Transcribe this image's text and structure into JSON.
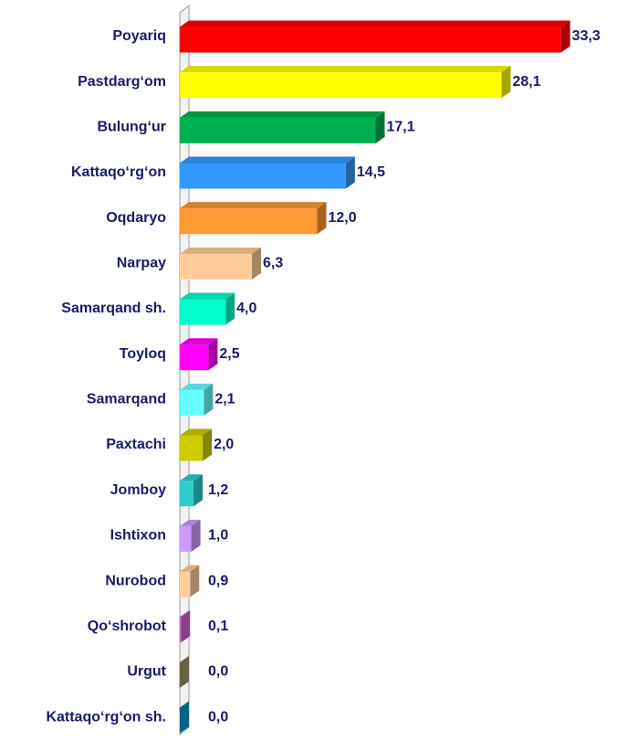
{
  "chart_data": {
    "type": "bar",
    "orientation": "horizontal",
    "categories": [
      "Poyariq",
      "Pastdarg‘om",
      "Bulung‘ur",
      "Kattaqo‘rg‘on",
      "Oqdaryo",
      "Narpay",
      "Samarqand sh.",
      "Toyloq",
      "Samarqand",
      "Paxtachi",
      "Jomboy",
      "Ishtixon",
      "Nurobod",
      "Qo‘shrobot",
      "Urgut",
      "Kattaqo‘rg‘on sh."
    ],
    "values": [
      33.3,
      28.1,
      17.1,
      14.5,
      12.0,
      6.3,
      4.0,
      2.5,
      2.1,
      2.0,
      1.2,
      1.0,
      0.9,
      0.1,
      0.0,
      0.0
    ],
    "value_labels": [
      "33,3",
      "28,1",
      "17,1",
      "14,5",
      "12,0",
      "6,3",
      "4,0",
      "2,5",
      "2,1",
      "2,0",
      "1,2",
      "1,0",
      "0,9",
      "0,1",
      "0,0",
      "0,0"
    ],
    "colors": [
      "#ff0000",
      "#ffff00",
      "#00b050",
      "#3399ff",
      "#ff9933",
      "#ffcc99",
      "#00ffcc",
      "#ff00ff",
      "#66ffff",
      "#cccc00",
      "#33cccc",
      "#cc99ff",
      "#ffcc99",
      "#cc66cc",
      "#999966",
      "#0099cc"
    ],
    "xlim": [
      0,
      35
    ]
  }
}
